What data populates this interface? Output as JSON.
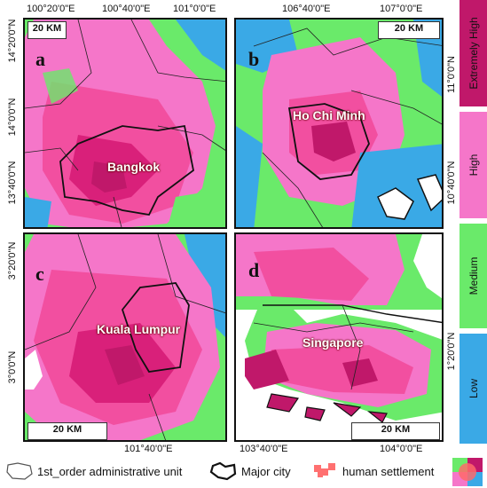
{
  "panels": [
    {
      "letter": "a",
      "city": "Bangkok",
      "scale": "20 KM"
    },
    {
      "letter": "b",
      "city": "Ho Chi Minh",
      "scale": "20 KM"
    },
    {
      "letter": "c",
      "city": "Kuala Lumpur",
      "scale": "20 KM"
    },
    {
      "letter": "d",
      "city": "Singapore",
      "scale": "20 KM"
    }
  ],
  "top_ticks": {
    "a": [
      "100°20'0\"E",
      "100°40'0\"E",
      "101°0'0\"E"
    ],
    "b": [
      "106°40'0\"E",
      "107°0'0\"E"
    ]
  },
  "bottom_ticks": {
    "c": [
      "101°40'0\"E"
    ],
    "d": [
      "103°40'0\"E",
      "104°0'0\"E"
    ]
  },
  "left_ticks": {
    "a": [
      "14°20'0\"N",
      "14°0'0\"N",
      "13°40'0\"N"
    ],
    "c": [
      "3°20'0\"N",
      "3°0'0\"N"
    ]
  },
  "right_ticks": {
    "b": [
      "11°0'0\"N",
      "10°40'0\"N"
    ],
    "d": [
      "1°20'0\"N"
    ]
  },
  "risk_legend": [
    {
      "label": "Extremely High",
      "color": "#c0186a"
    },
    {
      "label": "High",
      "color": "#f576c9"
    },
    {
      "label": "Medium",
      "color": "#6aea6a"
    },
    {
      "label": "Low",
      "color": "#3aa9e6"
    }
  ],
  "bottom_legend": {
    "admin_label": "1st_order administrative unit",
    "city_label": "Major city",
    "settlement_label": "human settlement"
  },
  "colors": {
    "settlement": "#ff6a6a",
    "water": "#ffffff"
  }
}
